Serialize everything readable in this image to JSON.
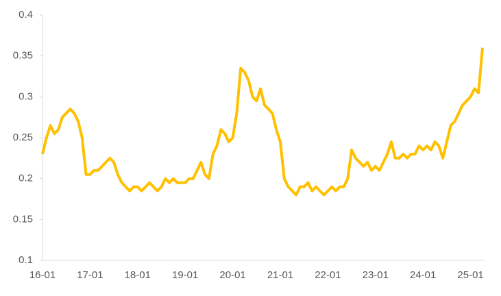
{
  "chart_data": {
    "type": "line",
    "x": [
      "16-01",
      "16-02",
      "16-03",
      "16-04",
      "16-05",
      "16-06",
      "16-07",
      "16-08",
      "16-09",
      "16-10",
      "16-11",
      "16-12",
      "17-01",
      "17-02",
      "17-03",
      "17-04",
      "17-05",
      "17-06",
      "17-07",
      "17-08",
      "17-09",
      "17-10",
      "17-11",
      "17-12",
      "18-01",
      "18-02",
      "18-03",
      "18-04",
      "18-05",
      "18-06",
      "18-07",
      "18-08",
      "18-09",
      "18-10",
      "18-11",
      "18-12",
      "19-01",
      "19-02",
      "19-03",
      "19-04",
      "19-05",
      "19-06",
      "19-07",
      "19-08",
      "19-09",
      "19-10",
      "19-11",
      "19-12",
      "20-01",
      "20-02",
      "20-03",
      "20-04",
      "20-05",
      "20-06",
      "20-07",
      "20-08",
      "20-09",
      "20-10",
      "20-11",
      "20-12",
      "21-01",
      "21-02",
      "21-03",
      "21-04",
      "21-05",
      "21-06",
      "21-07",
      "21-08",
      "21-09",
      "21-10",
      "21-11",
      "21-12",
      "22-01",
      "22-02",
      "22-03",
      "22-04",
      "22-05",
      "22-06",
      "22-07",
      "22-08",
      "22-09",
      "22-10",
      "22-11",
      "22-12",
      "23-01",
      "23-02",
      "23-03",
      "23-04",
      "23-05",
      "23-06",
      "23-07",
      "23-08",
      "23-09",
      "23-10",
      "23-11",
      "23-12",
      "24-01",
      "24-02",
      "24-03",
      "24-04",
      "24-05",
      "24-06",
      "24-07",
      "24-08",
      "24-09",
      "24-10",
      "24-11",
      "24-12",
      "25-01",
      "25-02",
      "25-03",
      "25-04"
    ],
    "series": [
      {
        "color": "#ffc000",
        "values": [
          0.23,
          0.25,
          0.265,
          0.255,
          0.26,
          0.275,
          0.28,
          0.285,
          0.28,
          0.27,
          0.25,
          0.205,
          0.205,
          0.21,
          0.21,
          0.215,
          0.22,
          0.225,
          0.22,
          0.205,
          0.195,
          0.19,
          0.185,
          0.19,
          0.19,
          0.185,
          0.19,
          0.195,
          0.19,
          0.185,
          0.19,
          0.2,
          0.195,
          0.2,
          0.195,
          0.195,
          0.195,
          0.2,
          0.2,
          0.21,
          0.22,
          0.205,
          0.2,
          0.23,
          0.24,
          0.26,
          0.255,
          0.245,
          0.25,
          0.28,
          0.335,
          0.33,
          0.32,
          0.3,
          0.295,
          0.31,
          0.29,
          0.285,
          0.28,
          0.26,
          0.245,
          0.2,
          0.19,
          0.185,
          0.18,
          0.19,
          0.19,
          0.195,
          0.185,
          0.19,
          0.185,
          0.18,
          0.185,
          0.19,
          0.185,
          0.19,
          0.19,
          0.2,
          0.235,
          0.225,
          0.22,
          0.215,
          0.22,
          0.21,
          0.215,
          0.21,
          0.22,
          0.23,
          0.245,
          0.225,
          0.225,
          0.23,
          0.225,
          0.23,
          0.23,
          0.24,
          0.235,
          0.24,
          0.235,
          0.245,
          0.24,
          0.225,
          0.245,
          0.265,
          0.27,
          0.28,
          0.29,
          0.295,
          0.3,
          0.31,
          0.305,
          0.36
        ]
      }
    ],
    "xticks": [
      "16-01",
      "17-01",
      "18-01",
      "19-01",
      "20-01",
      "21-01",
      "22-01",
      "23-01",
      "24-01",
      "25-01"
    ],
    "ylim": [
      0.1,
      0.4
    ],
    "yticks": [
      0.1,
      0.15,
      0.2,
      0.25,
      0.3,
      0.35,
      0.4
    ],
    "grid": false
  }
}
